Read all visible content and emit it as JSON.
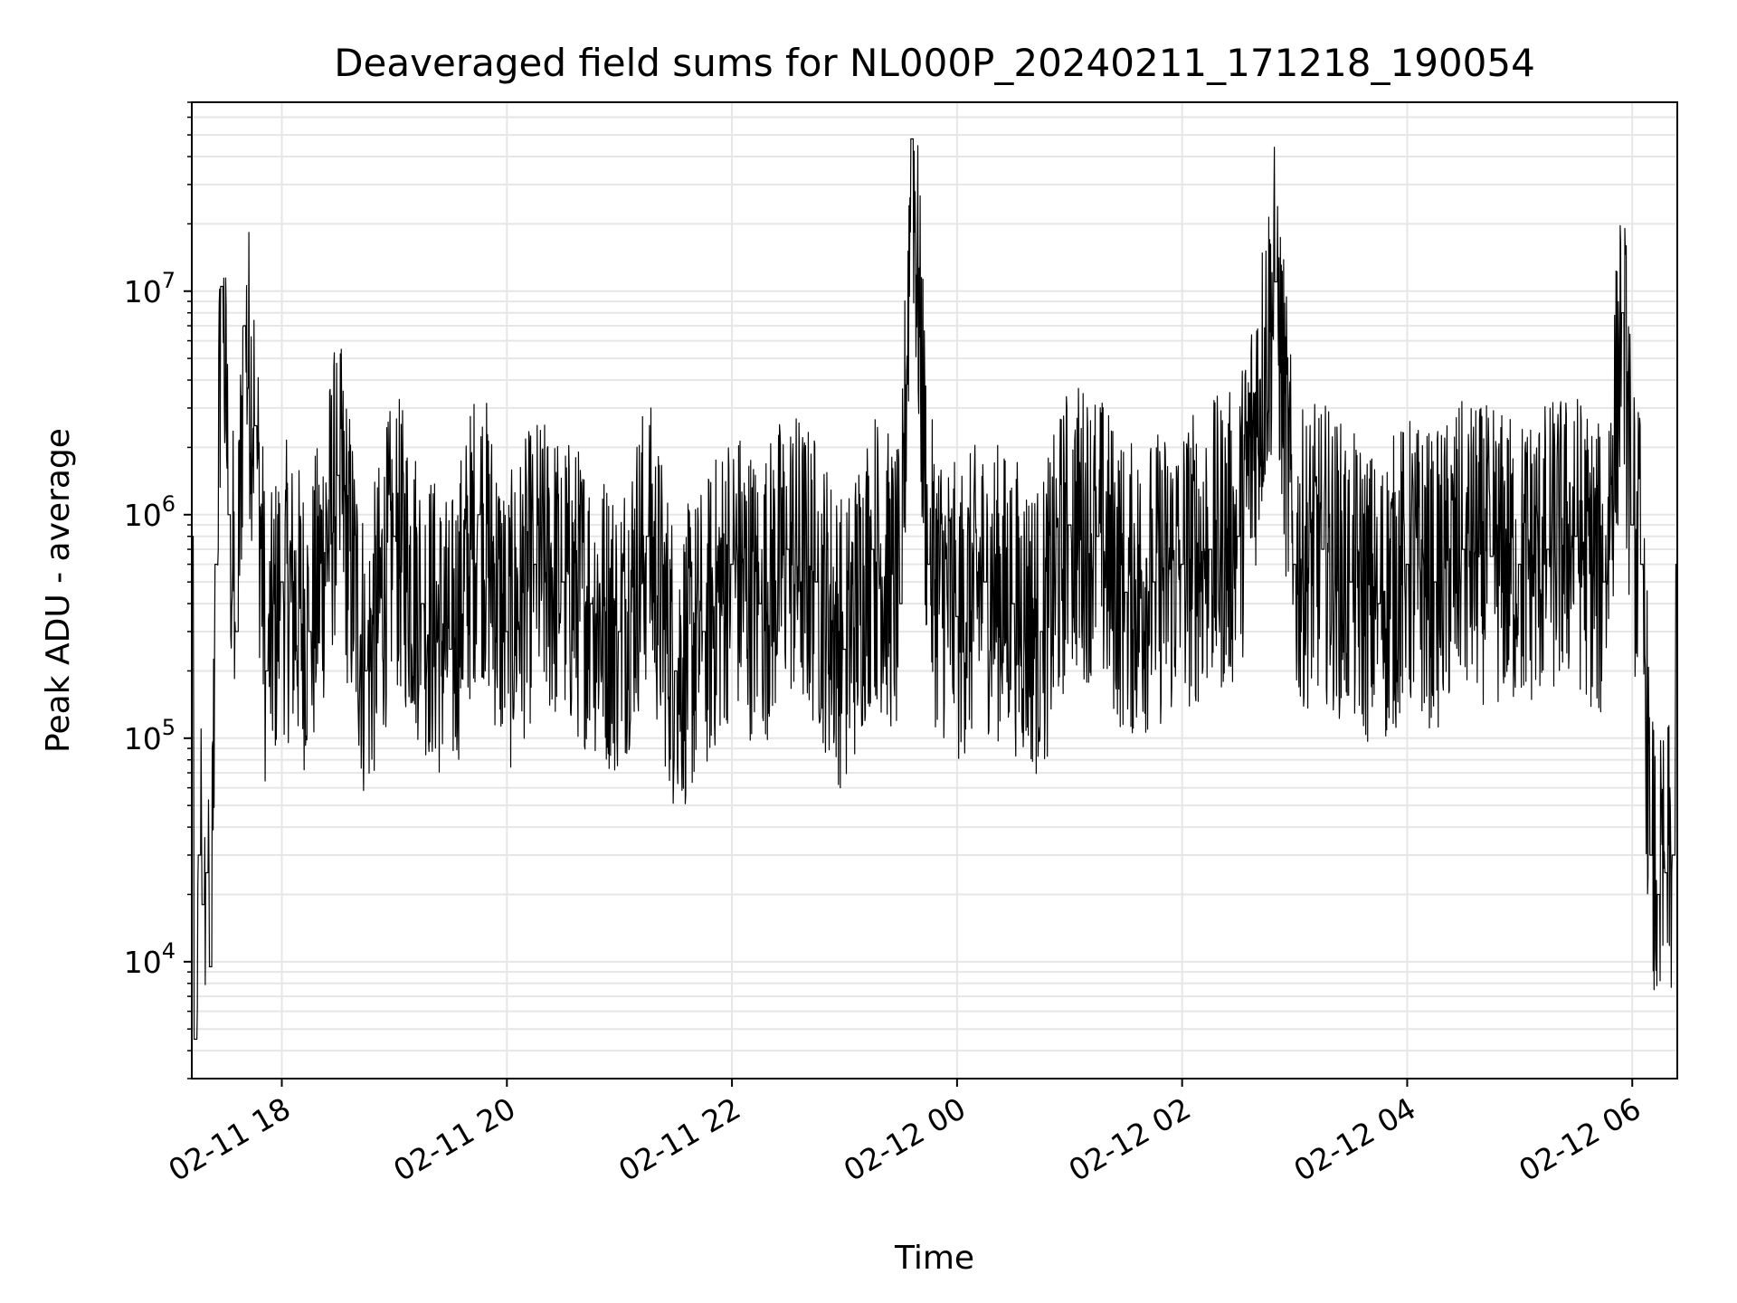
{
  "chart_data": {
    "type": "line",
    "title": "Deaveraged field sums for NL000P_20240211_171218_190054",
    "xlabel": "Time",
    "ylabel": "Peak ADU - average",
    "yscale": "log",
    "ylim": [
      3000,
      70000000
    ],
    "xlim": [
      "2024-02-11 17:12",
      "2024-02-12 06:24"
    ],
    "grid": true,
    "grid_minor": true,
    "legend": "none",
    "line_color": "#000000",
    "grid_color": "#e6e6e6",
    "x_tick_labels": [
      "02-11 18",
      "02-11 20",
      "02-11 22",
      "02-12 00",
      "02-12 02",
      "02-12 04",
      "02-12 06"
    ],
    "x_tick_times": [
      "2024-02-11 18:00",
      "2024-02-11 20:00",
      "2024-02-11 22:00",
      "2024-02-12 00:00",
      "2024-02-12 02:00",
      "2024-02-12 04:00",
      "2024-02-12 06:00"
    ],
    "y_ticks": [
      {
        "value": 10000,
        "base": "10",
        "exp": "4"
      },
      {
        "value": 100000,
        "base": "10",
        "exp": "5"
      },
      {
        "value": 1000000,
        "base": "10",
        "exp": "6"
      },
      {
        "value": 10000000,
        "base": "10",
        "exp": "7"
      }
    ],
    "series": [
      {
        "x": [
          "2024-02-11 17:12",
          "2024-02-11 17:14",
          "2024-02-11 17:16",
          "2024-02-11 17:18",
          "2024-02-11 17:20",
          "2024-02-11 17:22",
          "2024-02-11 17:25",
          "2024-02-11 17:28",
          "2024-02-11 17:32",
          "2024-02-11 17:36",
          "2024-02-11 17:40",
          "2024-02-11 17:46",
          "2024-02-11 17:52",
          "2024-02-11 18:00",
          "2024-02-11 18:15",
          "2024-02-11 18:30",
          "2024-02-11 18:45",
          "2024-02-11 19:00",
          "2024-02-11 19:15",
          "2024-02-11 19:30",
          "2024-02-11 19:45",
          "2024-02-11 20:00",
          "2024-02-11 20:15",
          "2024-02-11 20:30",
          "2024-02-11 20:45",
          "2024-02-11 21:00",
          "2024-02-11 21:15",
          "2024-02-11 21:30",
          "2024-02-11 21:45",
          "2024-02-11 22:00",
          "2024-02-11 22:15",
          "2024-02-11 22:30",
          "2024-02-11 22:45",
          "2024-02-11 23:00",
          "2024-02-11 23:15",
          "2024-02-11 23:30",
          "2024-02-11 23:36",
          "2024-02-11 23:45",
          "2024-02-12 00:00",
          "2024-02-12 00:15",
          "2024-02-12 00:30",
          "2024-02-12 00:45",
          "2024-02-12 01:00",
          "2024-02-12 01:15",
          "2024-02-12 01:30",
          "2024-02-12 01:45",
          "2024-02-12 02:00",
          "2024-02-12 02:15",
          "2024-02-12 02:30",
          "2024-02-12 02:50",
          "2024-02-12 03:00",
          "2024-02-12 03:15",
          "2024-02-12 03:30",
          "2024-02-12 03:45",
          "2024-02-12 04:00",
          "2024-02-12 04:15",
          "2024-02-12 04:30",
          "2024-02-12 04:45",
          "2024-02-12 05:00",
          "2024-02-12 05:15",
          "2024-02-12 05:30",
          "2024-02-12 05:45",
          "2024-02-12 05:55",
          "2024-02-12 06:00",
          "2024-02-12 06:05",
          "2024-02-12 06:10",
          "2024-02-12 06:14",
          "2024-02-12 06:18",
          "2024-02-12 06:22",
          "2024-02-12 06:24"
        ],
        "y": [
          800000,
          4500,
          30000,
          18000,
          25000,
          9500,
          600000,
          10500000,
          1000000,
          300000,
          7000000,
          2500000,
          200000,
          500000,
          300000,
          1500000,
          200000,
          800000,
          400000,
          250000,
          1000000,
          300000,
          600000,
          500000,
          400000,
          300000,
          800000,
          200000,
          300000,
          600000,
          400000,
          700000,
          500000,
          250000,
          700000,
          400000,
          48000000,
          600000,
          350000,
          500000,
          400000,
          300000,
          900000,
          800000,
          450000,
          500000,
          600000,
          700000,
          800000,
          11000000,
          600000,
          700000,
          500000,
          400000,
          600000,
          500000,
          700000,
          650000,
          600000,
          700000,
          800000,
          500000,
          8000000,
          900000,
          600000,
          30000,
          20000,
          25000,
          30000,
          600000
        ]
      }
    ]
  }
}
